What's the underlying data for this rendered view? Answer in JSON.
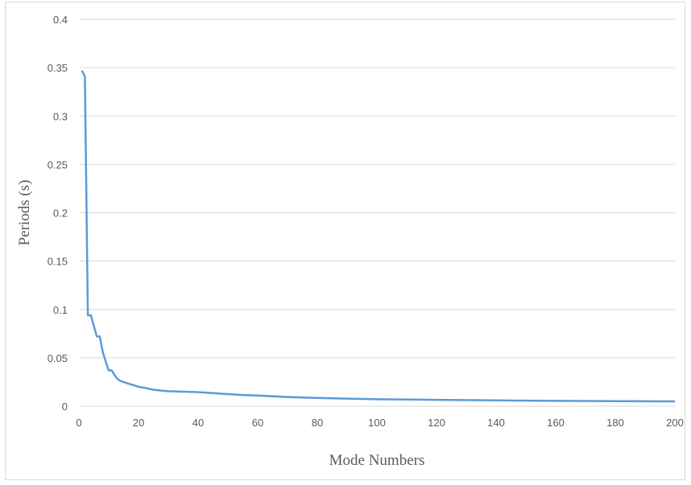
{
  "chart_data": {
    "type": "line",
    "title": "",
    "xlabel": "Mode Numbers",
    "ylabel": "Periods (s)",
    "xlim": [
      0,
      200
    ],
    "ylim": [
      0,
      0.4
    ],
    "x_ticks": [
      0,
      20,
      40,
      60,
      80,
      100,
      120,
      140,
      160,
      180,
      200
    ],
    "x_tick_labels": [
      "0",
      "20",
      "40",
      "60",
      "80",
      "100",
      "120",
      "140",
      "160",
      "180",
      "200"
    ],
    "y_ticks": [
      0,
      0.05,
      0.1,
      0.15,
      0.2,
      0.25,
      0.3,
      0.35,
      0.4
    ],
    "y_tick_labels": [
      "0",
      "0.05",
      "0.1",
      "0.15",
      "0.2",
      "0.25",
      "0.3",
      "0.35",
      "0.4"
    ],
    "grid": "horizontal",
    "legend": "none",
    "line_color": "#5b9bd5",
    "grid_color": "#d9d9d9",
    "series": [
      {
        "x": [
          1,
          2,
          3,
          4,
          5,
          6,
          7,
          8,
          9,
          10,
          11,
          12,
          13,
          14,
          15,
          16,
          18,
          20,
          22,
          25,
          28,
          30,
          35,
          40,
          45,
          50,
          55,
          60,
          70,
          80,
          90,
          100,
          120,
          140,
          160,
          180,
          200
        ],
        "y": [
          0.347,
          0.341,
          0.094,
          0.094,
          0.083,
          0.072,
          0.072,
          0.056,
          0.046,
          0.037,
          0.037,
          0.032,
          0.028,
          0.026,
          0.025,
          0.024,
          0.022,
          0.02,
          0.019,
          0.017,
          0.016,
          0.0155,
          0.015,
          0.0145,
          0.0135,
          0.0125,
          0.0115,
          0.011,
          0.0095,
          0.0085,
          0.0078,
          0.0072,
          0.0065,
          0.006,
          0.0055,
          0.0052,
          0.005
        ]
      }
    ]
  }
}
